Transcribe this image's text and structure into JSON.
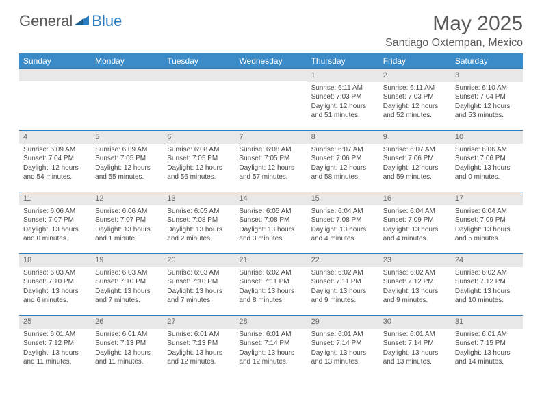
{
  "logo": {
    "word1": "General",
    "word2": "Blue"
  },
  "title": "May 2025",
  "location": "Santiago Oxtempan, Mexico",
  "colors": {
    "header_bg": "#3b8bc9",
    "header_fg": "#ffffff",
    "day_band_bg": "#e8e8e8",
    "week_border": "#2b7bbf",
    "text": "#4a4a4a",
    "title_text": "#5a5a5a"
  },
  "day_headers": [
    "Sunday",
    "Monday",
    "Tuesday",
    "Wednesday",
    "Thursday",
    "Friday",
    "Saturday"
  ],
  "weeks": [
    [
      null,
      null,
      null,
      null,
      {
        "n": "1",
        "sunrise": "Sunrise: 6:11 AM",
        "sunset": "Sunset: 7:03 PM",
        "day1": "Daylight: 12 hours",
        "day2": "and 51 minutes."
      },
      {
        "n": "2",
        "sunrise": "Sunrise: 6:11 AM",
        "sunset": "Sunset: 7:03 PM",
        "day1": "Daylight: 12 hours",
        "day2": "and 52 minutes."
      },
      {
        "n": "3",
        "sunrise": "Sunrise: 6:10 AM",
        "sunset": "Sunset: 7:04 PM",
        "day1": "Daylight: 12 hours",
        "day2": "and 53 minutes."
      }
    ],
    [
      {
        "n": "4",
        "sunrise": "Sunrise: 6:09 AM",
        "sunset": "Sunset: 7:04 PM",
        "day1": "Daylight: 12 hours",
        "day2": "and 54 minutes."
      },
      {
        "n": "5",
        "sunrise": "Sunrise: 6:09 AM",
        "sunset": "Sunset: 7:05 PM",
        "day1": "Daylight: 12 hours",
        "day2": "and 55 minutes."
      },
      {
        "n": "6",
        "sunrise": "Sunrise: 6:08 AM",
        "sunset": "Sunset: 7:05 PM",
        "day1": "Daylight: 12 hours",
        "day2": "and 56 minutes."
      },
      {
        "n": "7",
        "sunrise": "Sunrise: 6:08 AM",
        "sunset": "Sunset: 7:05 PM",
        "day1": "Daylight: 12 hours",
        "day2": "and 57 minutes."
      },
      {
        "n": "8",
        "sunrise": "Sunrise: 6:07 AM",
        "sunset": "Sunset: 7:06 PM",
        "day1": "Daylight: 12 hours",
        "day2": "and 58 minutes."
      },
      {
        "n": "9",
        "sunrise": "Sunrise: 6:07 AM",
        "sunset": "Sunset: 7:06 PM",
        "day1": "Daylight: 12 hours",
        "day2": "and 59 minutes."
      },
      {
        "n": "10",
        "sunrise": "Sunrise: 6:06 AM",
        "sunset": "Sunset: 7:06 PM",
        "day1": "Daylight: 13 hours",
        "day2": "and 0 minutes."
      }
    ],
    [
      {
        "n": "11",
        "sunrise": "Sunrise: 6:06 AM",
        "sunset": "Sunset: 7:07 PM",
        "day1": "Daylight: 13 hours",
        "day2": "and 0 minutes."
      },
      {
        "n": "12",
        "sunrise": "Sunrise: 6:06 AM",
        "sunset": "Sunset: 7:07 PM",
        "day1": "Daylight: 13 hours",
        "day2": "and 1 minute."
      },
      {
        "n": "13",
        "sunrise": "Sunrise: 6:05 AM",
        "sunset": "Sunset: 7:08 PM",
        "day1": "Daylight: 13 hours",
        "day2": "and 2 minutes."
      },
      {
        "n": "14",
        "sunrise": "Sunrise: 6:05 AM",
        "sunset": "Sunset: 7:08 PM",
        "day1": "Daylight: 13 hours",
        "day2": "and 3 minutes."
      },
      {
        "n": "15",
        "sunrise": "Sunrise: 6:04 AM",
        "sunset": "Sunset: 7:08 PM",
        "day1": "Daylight: 13 hours",
        "day2": "and 4 minutes."
      },
      {
        "n": "16",
        "sunrise": "Sunrise: 6:04 AM",
        "sunset": "Sunset: 7:09 PM",
        "day1": "Daylight: 13 hours",
        "day2": "and 4 minutes."
      },
      {
        "n": "17",
        "sunrise": "Sunrise: 6:04 AM",
        "sunset": "Sunset: 7:09 PM",
        "day1": "Daylight: 13 hours",
        "day2": "and 5 minutes."
      }
    ],
    [
      {
        "n": "18",
        "sunrise": "Sunrise: 6:03 AM",
        "sunset": "Sunset: 7:10 PM",
        "day1": "Daylight: 13 hours",
        "day2": "and 6 minutes."
      },
      {
        "n": "19",
        "sunrise": "Sunrise: 6:03 AM",
        "sunset": "Sunset: 7:10 PM",
        "day1": "Daylight: 13 hours",
        "day2": "and 7 minutes."
      },
      {
        "n": "20",
        "sunrise": "Sunrise: 6:03 AM",
        "sunset": "Sunset: 7:10 PM",
        "day1": "Daylight: 13 hours",
        "day2": "and 7 minutes."
      },
      {
        "n": "21",
        "sunrise": "Sunrise: 6:02 AM",
        "sunset": "Sunset: 7:11 PM",
        "day1": "Daylight: 13 hours",
        "day2": "and 8 minutes."
      },
      {
        "n": "22",
        "sunrise": "Sunrise: 6:02 AM",
        "sunset": "Sunset: 7:11 PM",
        "day1": "Daylight: 13 hours",
        "day2": "and 9 minutes."
      },
      {
        "n": "23",
        "sunrise": "Sunrise: 6:02 AM",
        "sunset": "Sunset: 7:12 PM",
        "day1": "Daylight: 13 hours",
        "day2": "and 9 minutes."
      },
      {
        "n": "24",
        "sunrise": "Sunrise: 6:02 AM",
        "sunset": "Sunset: 7:12 PM",
        "day1": "Daylight: 13 hours",
        "day2": "and 10 minutes."
      }
    ],
    [
      {
        "n": "25",
        "sunrise": "Sunrise: 6:01 AM",
        "sunset": "Sunset: 7:12 PM",
        "day1": "Daylight: 13 hours",
        "day2": "and 11 minutes."
      },
      {
        "n": "26",
        "sunrise": "Sunrise: 6:01 AM",
        "sunset": "Sunset: 7:13 PM",
        "day1": "Daylight: 13 hours",
        "day2": "and 11 minutes."
      },
      {
        "n": "27",
        "sunrise": "Sunrise: 6:01 AM",
        "sunset": "Sunset: 7:13 PM",
        "day1": "Daylight: 13 hours",
        "day2": "and 12 minutes."
      },
      {
        "n": "28",
        "sunrise": "Sunrise: 6:01 AM",
        "sunset": "Sunset: 7:14 PM",
        "day1": "Daylight: 13 hours",
        "day2": "and 12 minutes."
      },
      {
        "n": "29",
        "sunrise": "Sunrise: 6:01 AM",
        "sunset": "Sunset: 7:14 PM",
        "day1": "Daylight: 13 hours",
        "day2": "and 13 minutes."
      },
      {
        "n": "30",
        "sunrise": "Sunrise: 6:01 AM",
        "sunset": "Sunset: 7:14 PM",
        "day1": "Daylight: 13 hours",
        "day2": "and 13 minutes."
      },
      {
        "n": "31",
        "sunrise": "Sunrise: 6:01 AM",
        "sunset": "Sunset: 7:15 PM",
        "day1": "Daylight: 13 hours",
        "day2": "and 14 minutes."
      }
    ]
  ]
}
